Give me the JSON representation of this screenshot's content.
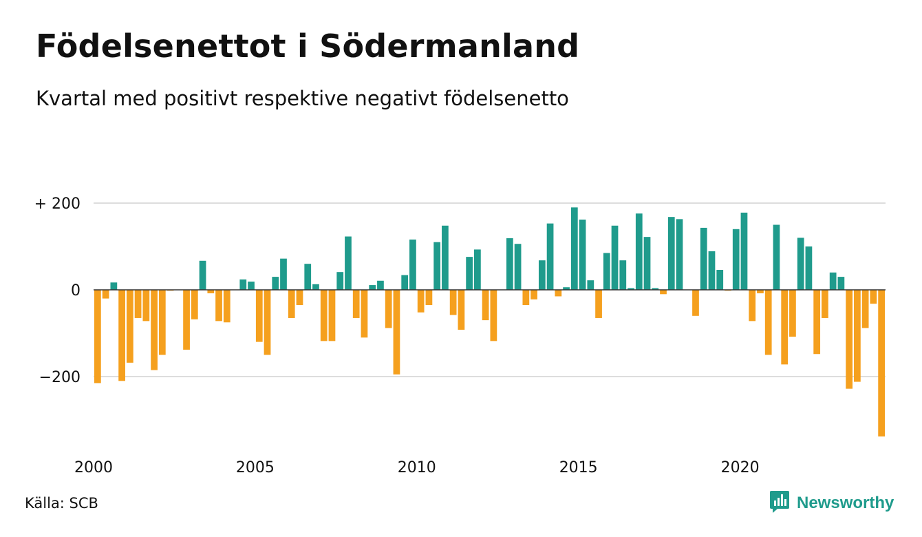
{
  "title": "Födelsenettot i Södermanland",
  "subtitle": "Kvartal med positivt respektive negativt födelsenetto",
  "source": "Källa: SCB",
  "brand": {
    "name": "Newsworthy",
    "icon": "bar-chart-speech-bubble-icon",
    "color": "#1f9b8c"
  },
  "colors": {
    "positive": "#1f9b8c",
    "negative": "#f5a01e",
    "grid": "#dddddd",
    "zero_line": "#333333"
  },
  "chart_data": {
    "type": "bar",
    "title": "Födelsenettot i Södermanland",
    "subtitle": "Kvartal med positivt respektive negativt födelsenetto",
    "xlabel": "",
    "ylabel": "",
    "period": "quarter",
    "start_year": 2000,
    "ylim": [
      -340,
      200
    ],
    "y_ticks": [
      {
        "value": 200,
        "label": "+ 200"
      },
      {
        "value": 0,
        "label": "0"
      },
      {
        "value": -200,
        "label": "−200"
      }
    ],
    "x_ticks": [
      {
        "value": 2000,
        "label": "2000"
      },
      {
        "value": 2005,
        "label": "2005"
      },
      {
        "value": 2010,
        "label": "2010"
      },
      {
        "value": 2015,
        "label": "2015"
      },
      {
        "value": 2020,
        "label": "2020"
      }
    ],
    "grid": true,
    "legend": "none",
    "values": [
      -215,
      -20,
      17,
      -210,
      -168,
      -65,
      -72,
      -185,
      -150,
      -2,
      0,
      -138,
      -68,
      67,
      -8,
      -72,
      -75,
      0,
      24,
      19,
      -120,
      -150,
      30,
      72,
      -65,
      -35,
      60,
      13,
      -118,
      -118,
      41,
      123,
      -65,
      -110,
      11,
      21,
      -88,
      -195,
      34,
      116,
      -52,
      -35,
      110,
      148,
      -58,
      -92,
      76,
      93,
      -70,
      -118,
      0,
      119,
      106,
      -35,
      -22,
      68,
      153,
      -15,
      6,
      190,
      162,
      22,
      -65,
      85,
      148,
      68,
      4,
      176,
      122,
      4,
      -10,
      168,
      163,
      0,
      -60,
      143,
      89,
      46,
      -2,
      140,
      178,
      -72,
      -8,
      -150,
      150,
      -172,
      -108,
      120,
      100,
      -148,
      -65,
      40,
      30,
      -228,
      -212,
      -88,
      -32,
      -338
    ]
  }
}
